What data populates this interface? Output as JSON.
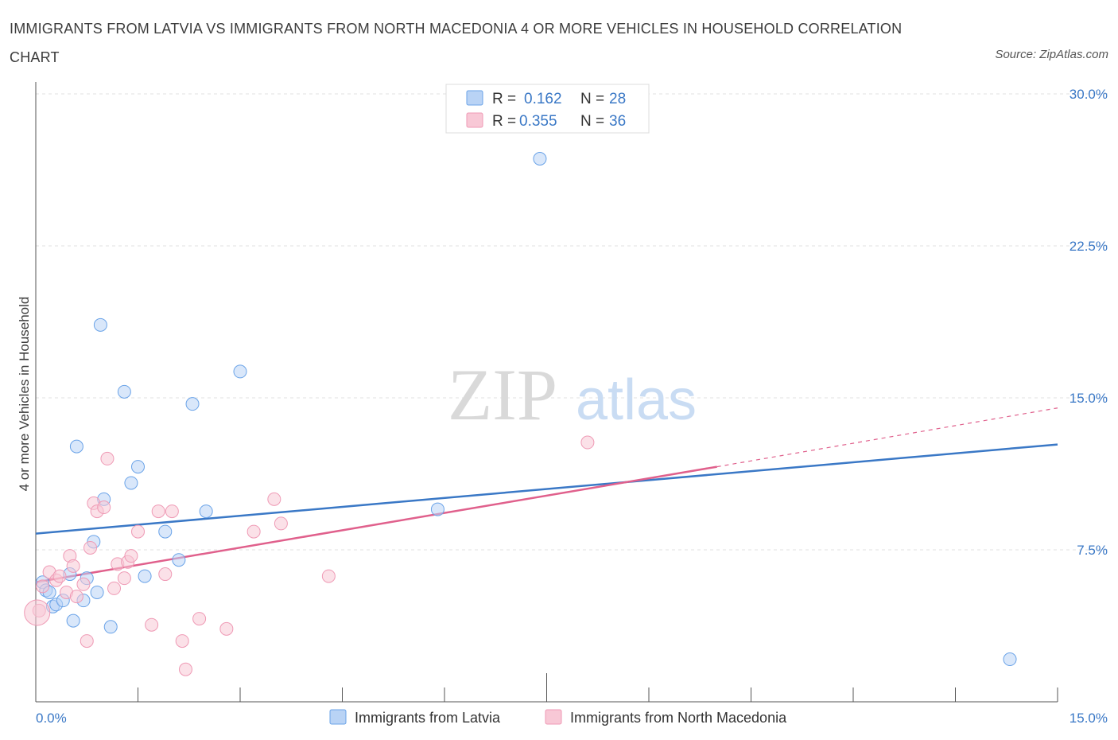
{
  "title": "IMMIGRANTS FROM LATVIA VS IMMIGRANTS FROM NORTH MACEDONIA 4 OR MORE VEHICLES IN HOUSEHOLD CORRELATION CHART",
  "source": "Source: ZipAtlas.com",
  "watermark": {
    "zip": "ZIP",
    "atlas": "atlas"
  },
  "legend_top": [
    {
      "r_label": "R =",
      "r_value": "0.162",
      "n_label": "N =",
      "n_value": "28"
    },
    {
      "r_label": "R =",
      "r_value": "0.355",
      "n_label": "N =",
      "n_value": "36"
    }
  ],
  "chart_data": {
    "type": "scatter",
    "title": "IMMIGRANTS FROM LATVIA VS IMMIGRANTS FROM NORTH MACEDONIA 4 OR MORE VEHICLES IN HOUSEHOLD CORRELATION CHART",
    "xlabel": "",
    "ylabel": "4 or more Vehicles in Household",
    "xlim": [
      0,
      15
    ],
    "ylim": [
      0,
      30
    ],
    "x_tick_labels": [
      "0.0%",
      "15.0%"
    ],
    "y_ticks": [
      7.5,
      15.0,
      22.5,
      30.0
    ],
    "y_tick_labels": [
      "7.5%",
      "15.0%",
      "22.5%",
      "30.0%"
    ],
    "grid": true,
    "legend_position": "top-center",
    "series": [
      {
        "name": "Immigrants from Latvia",
        "color": "#6aa3e8",
        "fill": "#b9d3f5",
        "line_color": "#3a78c6",
        "trend": {
          "x0": 0,
          "y0": 8.3,
          "x1": 15,
          "y1": 12.7
        },
        "points": [
          [
            0.1,
            5.9
          ],
          [
            0.15,
            5.5
          ],
          [
            0.2,
            5.4
          ],
          [
            0.25,
            4.7
          ],
          [
            0.3,
            4.8
          ],
          [
            0.4,
            5.0
          ],
          [
            0.5,
            6.3
          ],
          [
            0.55,
            4.0
          ],
          [
            0.6,
            12.6
          ],
          [
            0.7,
            5.0
          ],
          [
            0.75,
            6.1
          ],
          [
            0.85,
            7.9
          ],
          [
            0.9,
            5.4
          ],
          [
            0.95,
            18.6
          ],
          [
            1.0,
            10.0
          ],
          [
            1.1,
            3.7
          ],
          [
            1.3,
            15.3
          ],
          [
            1.4,
            10.8
          ],
          [
            1.5,
            11.6
          ],
          [
            1.6,
            6.2
          ],
          [
            1.9,
            8.4
          ],
          [
            2.1,
            7.0
          ],
          [
            2.3,
            14.7
          ],
          [
            2.5,
            9.4
          ],
          [
            3.0,
            16.3
          ],
          [
            5.9,
            9.5
          ],
          [
            7.4,
            26.8
          ],
          [
            14.3,
            2.1
          ]
        ]
      },
      {
        "name": "Immigrants from North Macedonia",
        "color": "#ef9ab5",
        "fill": "#f8c8d6",
        "line_color": "#e0608c",
        "trend": {
          "x0": 0,
          "y0": 5.9,
          "x1": 10.0,
          "y1": 11.6
        },
        "trend_dashed": {
          "x0": 10.0,
          "y0": 11.6,
          "x1": 15,
          "y1": 14.5
        },
        "points": [
          [
            0.05,
            4.5
          ],
          [
            0.1,
            5.7
          ],
          [
            0.2,
            6.4
          ],
          [
            0.3,
            6.0
          ],
          [
            0.35,
            6.2
          ],
          [
            0.45,
            5.4
          ],
          [
            0.5,
            7.2
          ],
          [
            0.55,
            6.7
          ],
          [
            0.6,
            5.2
          ],
          [
            0.7,
            5.8
          ],
          [
            0.75,
            3.0
          ],
          [
            0.8,
            7.6
          ],
          [
            0.85,
            9.8
          ],
          [
            0.9,
            9.4
          ],
          [
            1.0,
            9.6
          ],
          [
            1.05,
            12.0
          ],
          [
            1.15,
            5.6
          ],
          [
            1.2,
            6.8
          ],
          [
            1.3,
            6.1
          ],
          [
            1.35,
            6.9
          ],
          [
            1.4,
            7.2
          ],
          [
            1.5,
            8.4
          ],
          [
            1.7,
            3.8
          ],
          [
            1.8,
            9.4
          ],
          [
            1.9,
            6.3
          ],
          [
            2.0,
            9.4
          ],
          [
            2.15,
            3.0
          ],
          [
            2.2,
            1.6
          ],
          [
            2.4,
            4.1
          ],
          [
            2.8,
            3.6
          ],
          [
            3.2,
            8.4
          ],
          [
            3.5,
            10.0
          ],
          [
            3.6,
            8.8
          ],
          [
            4.3,
            6.2
          ],
          [
            8.1,
            12.8
          ],
          [
            0.02,
            4.4
          ]
        ]
      }
    ]
  }
}
